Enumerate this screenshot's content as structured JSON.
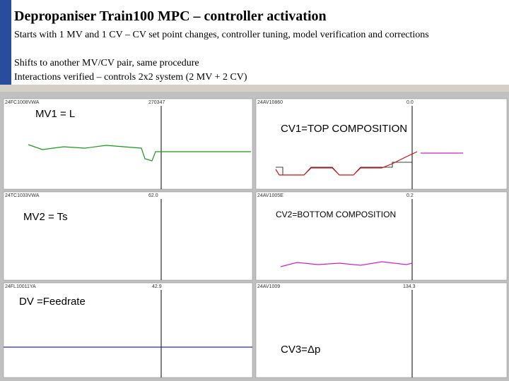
{
  "title": "Depropaniser Train100 MPC – controller activation",
  "bullets": [
    "Starts with 1 MV and 1 CV – CV set point changes, controller tuning, model verification and corrections",
    "Shifts to another MV/CV pair, same procedure",
    "Interactions verified – controls 2x2 system (2 MV + 2 CV)"
  ],
  "panels": [
    {
      "tag": "24FC1008VWA",
      "value": "270347",
      "label": "MV1 = L"
    },
    {
      "tag": "24AV10860",
      "value": "0.0",
      "label": "CV1=TOP COMPOSITION"
    },
    {
      "tag": "24TC1033VWA",
      "value": "62.0",
      "label": "MV2 = Ts"
    },
    {
      "tag": "24AV1005E",
      "value": "0.2",
      "label": "CV2=BOTTOM COMPOSITION"
    },
    {
      "tag": "24FL10011YA",
      "value": "42.9",
      "label": "DV =Feedrate"
    },
    {
      "tag": "24AV1009",
      "value": "134.3",
      "label": "CV3=Δp"
    }
  ]
}
